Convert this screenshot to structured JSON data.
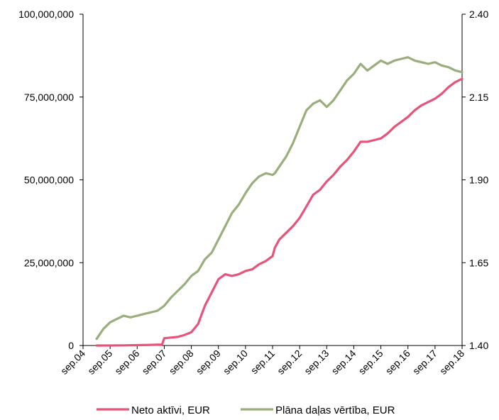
{
  "chart_data": {
    "type": "line",
    "x_tick_labels": [
      "sep.04",
      "sep.05",
      "sep.06",
      "sep.07",
      "sep.08",
      "sep.09",
      "sep.10",
      "sep.11",
      "sep.12",
      "sep.13",
      "sep.14",
      "sep.15",
      "sep.16",
      "sep.17",
      "sep.18"
    ],
    "y_left_ticks": [
      "0",
      "25,000,000",
      "50,000,000",
      "75,000,000",
      "100,000,000"
    ],
    "y_right_ticks": [
      "1.40",
      "1.65",
      "1.90",
      "2.15",
      "2.40"
    ],
    "ylim_left": [
      0,
      100000000
    ],
    "ylim_right": [
      1.4,
      2.4
    ],
    "grid": false,
    "legend_position": "bottom",
    "series": [
      {
        "name": "Neto aktīvi, EUR",
        "axis": "left",
        "color": "#e8537a",
        "points": [
          [
            "2005-03",
            0
          ],
          [
            "2005-09",
            0
          ],
          [
            "2006-03",
            50000
          ],
          [
            "2006-09",
            100000
          ],
          [
            "2007-03",
            200000
          ],
          [
            "2007-08",
            300000
          ],
          [
            "2007-09",
            2200000
          ],
          [
            "2007-12",
            2400000
          ],
          [
            "2008-03",
            2600000
          ],
          [
            "2008-06",
            3200000
          ],
          [
            "2008-09",
            4000000
          ],
          [
            "2008-12",
            6500000
          ],
          [
            "2009-03",
            12000000
          ],
          [
            "2009-06",
            16000000
          ],
          [
            "2009-09",
            20000000
          ],
          [
            "2009-12",
            21500000
          ],
          [
            "2010-03",
            21000000
          ],
          [
            "2010-06",
            21500000
          ],
          [
            "2010-09",
            22500000
          ],
          [
            "2010-12",
            23000000
          ],
          [
            "2011-03",
            24500000
          ],
          [
            "2011-06",
            25500000
          ],
          [
            "2011-09",
            27000000
          ],
          [
            "2011-10",
            29500000
          ],
          [
            "2011-12",
            32000000
          ],
          [
            "2012-03",
            34000000
          ],
          [
            "2012-06",
            36000000
          ],
          [
            "2012-09",
            38500000
          ],
          [
            "2012-12",
            42000000
          ],
          [
            "2013-03",
            45500000
          ],
          [
            "2013-06",
            47000000
          ],
          [
            "2013-09",
            49500000
          ],
          [
            "2013-12",
            51500000
          ],
          [
            "2014-03",
            54000000
          ],
          [
            "2014-06",
            56000000
          ],
          [
            "2014-09",
            58500000
          ],
          [
            "2014-12",
            61500000
          ],
          [
            "2015-03",
            61500000
          ],
          [
            "2015-06",
            62000000
          ],
          [
            "2015-09",
            62500000
          ],
          [
            "2015-12",
            64000000
          ],
          [
            "2016-03",
            66000000
          ],
          [
            "2016-06",
            67500000
          ],
          [
            "2016-09",
            69000000
          ],
          [
            "2016-12",
            71000000
          ],
          [
            "2017-03",
            72500000
          ],
          [
            "2017-06",
            73500000
          ],
          [
            "2017-09",
            74500000
          ],
          [
            "2017-12",
            76000000
          ],
          [
            "2018-03",
            78000000
          ],
          [
            "2018-06",
            79500000
          ],
          [
            "2018-09",
            80500000
          ]
        ]
      },
      {
        "name": "Plāna daļas vērtība, EUR",
        "axis": "right",
        "color": "#9aad7c",
        "points": [
          [
            "2005-03",
            1.42
          ],
          [
            "2005-06",
            1.45
          ],
          [
            "2005-09",
            1.47
          ],
          [
            "2005-12",
            1.48
          ],
          [
            "2006-03",
            1.49
          ],
          [
            "2006-06",
            1.485
          ],
          [
            "2006-09",
            1.49
          ],
          [
            "2006-12",
            1.495
          ],
          [
            "2007-03",
            1.5
          ],
          [
            "2007-06",
            1.505
          ],
          [
            "2007-09",
            1.52
          ],
          [
            "2007-12",
            1.545
          ],
          [
            "2008-03",
            1.565
          ],
          [
            "2008-06",
            1.585
          ],
          [
            "2008-09",
            1.61
          ],
          [
            "2008-12",
            1.625
          ],
          [
            "2009-03",
            1.66
          ],
          [
            "2009-06",
            1.68
          ],
          [
            "2009-09",
            1.72
          ],
          [
            "2009-12",
            1.76
          ],
          [
            "2010-03",
            1.8
          ],
          [
            "2010-06",
            1.825
          ],
          [
            "2010-09",
            1.86
          ],
          [
            "2010-12",
            1.89
          ],
          [
            "2011-03",
            1.91
          ],
          [
            "2011-06",
            1.92
          ],
          [
            "2011-09",
            1.915
          ],
          [
            "2011-10",
            1.92
          ],
          [
            "2011-12",
            1.94
          ],
          [
            "2012-03",
            1.97
          ],
          [
            "2012-06",
            2.01
          ],
          [
            "2012-09",
            2.06
          ],
          [
            "2012-12",
            2.11
          ],
          [
            "2013-03",
            2.13
          ],
          [
            "2013-06",
            2.14
          ],
          [
            "2013-09",
            2.12
          ],
          [
            "2013-12",
            2.14
          ],
          [
            "2014-03",
            2.17
          ],
          [
            "2014-06",
            2.2
          ],
          [
            "2014-09",
            2.22
          ],
          [
            "2014-12",
            2.25
          ],
          [
            "2015-03",
            2.23
          ],
          [
            "2015-06",
            2.245
          ],
          [
            "2015-09",
            2.26
          ],
          [
            "2015-12",
            2.25
          ],
          [
            "2016-03",
            2.26
          ],
          [
            "2016-06",
            2.265
          ],
          [
            "2016-09",
            2.27
          ],
          [
            "2016-12",
            2.26
          ],
          [
            "2017-03",
            2.255
          ],
          [
            "2017-06",
            2.25
          ],
          [
            "2017-09",
            2.255
          ],
          [
            "2017-12",
            2.245
          ],
          [
            "2018-03",
            2.24
          ],
          [
            "2018-06",
            2.23
          ],
          [
            "2018-09",
            2.225
          ]
        ]
      }
    ]
  }
}
